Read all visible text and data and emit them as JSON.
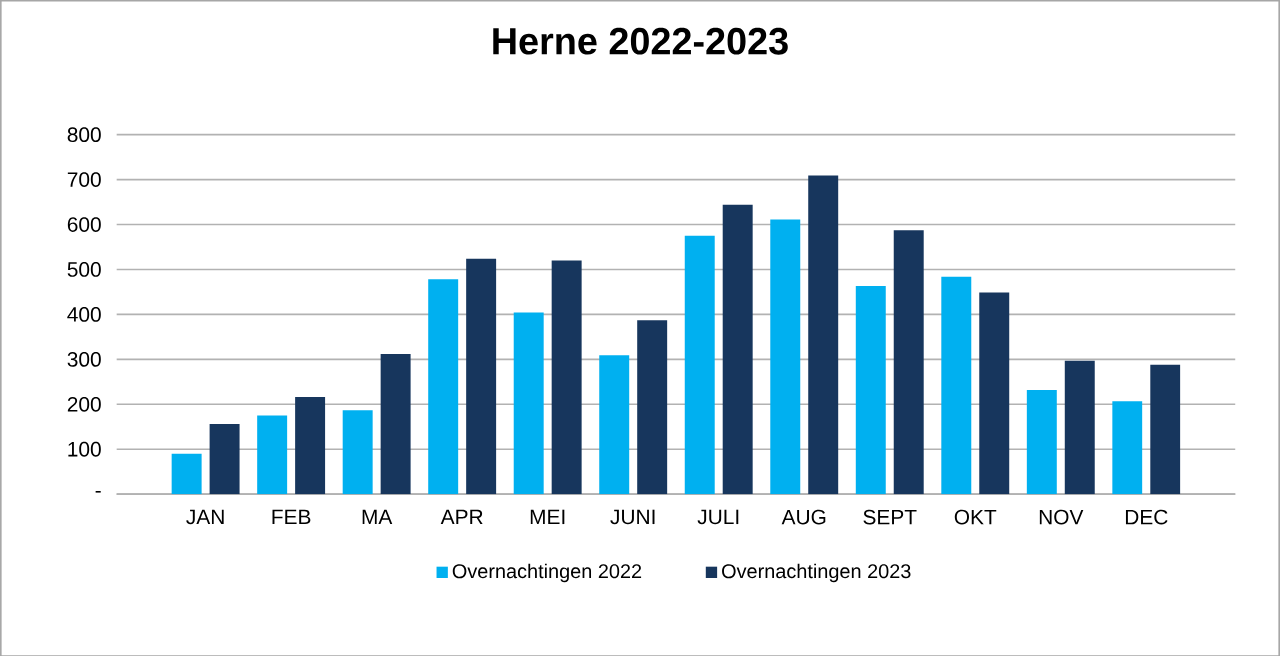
{
  "chart_data": {
    "type": "bar",
    "title": "Herne 2022-2023",
    "categories": [
      "JAN",
      "FEB",
      "MA",
      "APR",
      "MEI",
      "JUNI",
      "JULI",
      "AUG",
      "SEPT",
      "OKT",
      "NOV",
      "DEC"
    ],
    "series": [
      {
        "name": "Overnachtingen 2022",
        "color": "#00b0f0",
        "values": [
          90,
          175,
          187,
          478,
          404,
          309,
          575,
          611,
          463,
          484,
          232,
          207
        ]
      },
      {
        "name": "Overnachtingen 2023",
        "color": "#17365d",
        "values": [
          156,
          216,
          312,
          524,
          520,
          387,
          644,
          709,
          587,
          449,
          297,
          288
        ]
      }
    ],
    "ylim": [
      0,
      800
    ],
    "yticks": [
      {
        "value": 0,
        "label": "-"
      },
      100,
      200,
      300,
      400,
      500,
      600,
      700,
      800
    ],
    "grid": "y",
    "legend": "bottom"
  }
}
